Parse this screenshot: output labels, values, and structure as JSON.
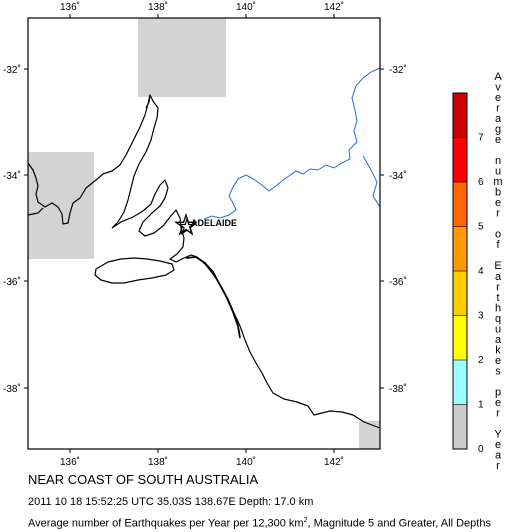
{
  "map": {
    "lon_ticks": [
      "136˚",
      "138˚",
      "140˚",
      "142˚"
    ],
    "lat_ticks": [
      "-32˚",
      "-34˚",
      "-36˚",
      "-38˚"
    ],
    "place_label": "ADELAIDE",
    "colors": {
      "coastline": "#000000",
      "rivers": "#1f6fd6",
      "low_rate_cells": "#d3d3d3",
      "epicenter_marker": "#000000"
    },
    "icons": {
      "epicenter": "star-icon",
      "city": "star-icon"
    }
  },
  "legend": {
    "title": "Average number of Earthquakes per Year",
    "ticks": [
      "0",
      "1",
      "2",
      "3",
      "4",
      "5",
      "6",
      "7"
    ],
    "colors": [
      "#cccccc",
      "#99ffff",
      "#ffff00",
      "#ffcc00",
      "#ff9900",
      "#ff6600",
      "#ff0000",
      "#cc0000"
    ]
  },
  "caption": {
    "title": "NEAR COAST OF SOUTH AUSTRALIA",
    "event": "2011 10 18 15:52:25 UTC 35.03S 138.67E Depth: 17.0 km",
    "description_before": "Average number of Earthquakes per Year per 12,300 km",
    "description_sup": "2",
    "description_after": ", Magnitude 5 and Greater, All Depths"
  }
}
